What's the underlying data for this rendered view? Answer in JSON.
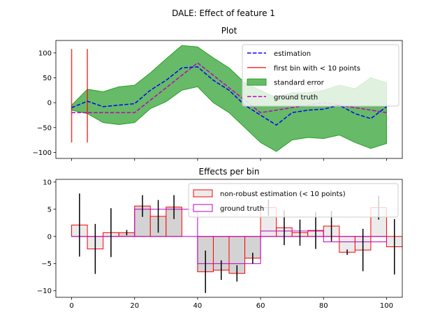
{
  "figure": {
    "suptitle": "DALE: Effect of feature 1"
  },
  "chart_data": [
    {
      "type": "line",
      "title": "Plot",
      "xlim": [
        -5,
        105
      ],
      "ylim": [
        -112,
        125
      ],
      "xticks": [
        0,
        20,
        40,
        60,
        80,
        100
      ],
      "show_xtick_labels": false,
      "yticks": [
        -100,
        -50,
        0,
        50,
        100
      ],
      "legend_position": "top-right",
      "series": [
        {
          "name": "estimation",
          "style": "dashed",
          "color": "#0000ff",
          "x": [
            0,
            5,
            10,
            15,
            20,
            25,
            30,
            35,
            40,
            45,
            50,
            55,
            60,
            65,
            70,
            75,
            80,
            85,
            90,
            95,
            100
          ],
          "y": [
            -10,
            3,
            -8,
            -5,
            -2,
            25,
            45,
            70,
            72,
            45,
            25,
            -5,
            -25,
            -45,
            -20,
            -15,
            -13,
            -5,
            -22,
            -32,
            -8
          ]
        },
        {
          "name": "ground truth",
          "style": "dashed",
          "color": "#bf00bf",
          "x": [
            0,
            20,
            40,
            60,
            80,
            100
          ],
          "y": [
            -20,
            -20,
            80,
            -20,
            0,
            -20
          ]
        }
      ],
      "band": {
        "name": "standard error",
        "color": "#2ca02c",
        "x": [
          0,
          5,
          10,
          15,
          20,
          25,
          30,
          35,
          40,
          45,
          50,
          55,
          60,
          65,
          70,
          75,
          80,
          85,
          90,
          95,
          100
        ],
        "upper": [
          -5,
          27,
          22,
          32,
          35,
          60,
          88,
          115,
          112,
          90,
          70,
          40,
          25,
          10,
          20,
          20,
          25,
          35,
          28,
          50,
          40
        ],
        "lower": [
          -15,
          -22,
          -40,
          -44,
          -40,
          -12,
          2,
          25,
          32,
          0,
          -20,
          -50,
          -80,
          -98,
          -75,
          -70,
          -72,
          -65,
          -80,
          -92,
          -82
        ]
      },
      "vlines": {
        "name": "first bin with < 10 points",
        "color": "#ff0000",
        "x": [
          0,
          5
        ],
        "ymin": -80,
        "ymax": 108
      }
    },
    {
      "type": "bar",
      "title": "Effects per bin",
      "xlim": [
        -5,
        105
      ],
      "ylim": [
        -11.2,
        10.5
      ],
      "xticks": [
        0,
        20,
        40,
        60,
        80,
        100
      ],
      "yticks": [
        -10,
        -5,
        0,
        5,
        10
      ],
      "legend_position": "top-right",
      "bars": {
        "name": "non-robust estimation (< 10 points)",
        "edge_color": "#ff0000",
        "items": [
          {
            "x0": 0,
            "x1": 5,
            "value": 2.1,
            "robust": false,
            "err": 5.8
          },
          {
            "x0": 5,
            "x1": 10,
            "value": -2.3,
            "robust": false,
            "err": 4.6
          },
          {
            "x0": 10,
            "x1": 15,
            "value": 0.7,
            "robust": false,
            "err": 4.5
          },
          {
            "x0": 15,
            "x1": 20,
            "value": 0.7,
            "robust": true,
            "err": 0.5
          },
          {
            "x0": 20,
            "x1": 25,
            "value": 5.6,
            "robust": true,
            "err": 2.0
          },
          {
            "x0": 25,
            "x1": 30,
            "value": 3.7,
            "robust": true,
            "err": 3.0
          },
          {
            "x0": 30,
            "x1": 35,
            "value": 5.4,
            "robust": true,
            "err": 2.2
          },
          {
            "x0": 35,
            "x1": 40,
            "value": 0.0,
            "robust": true,
            "err": 0.0
          },
          {
            "x0": 40,
            "x1": 45,
            "value": -6.5,
            "robust": true,
            "err": 3.9
          },
          {
            "x0": 45,
            "x1": 50,
            "value": -6.2,
            "robust": true,
            "err": 1.8
          },
          {
            "x0": 50,
            "x1": 55,
            "value": -6.8,
            "robust": true,
            "err": 1.5
          },
          {
            "x0": 55,
            "x1": 60,
            "value": -4.0,
            "robust": true,
            "err": 1.0
          },
          {
            "x0": 60,
            "x1": 65,
            "value": 5.3,
            "robust": false,
            "err": 1.5
          },
          {
            "x0": 65,
            "x1": 70,
            "value": 1.6,
            "robust": false,
            "err": 3.2
          },
          {
            "x0": 70,
            "x1": 75,
            "value": 0.7,
            "robust": false,
            "err": 2.4
          },
          {
            "x0": 75,
            "x1": 80,
            "value": 1.1,
            "robust": false,
            "err": 3.4
          },
          {
            "x0": 80,
            "x1": 85,
            "value": 1.9,
            "robust": false,
            "err": 2.8
          },
          {
            "x0": 85,
            "x1": 90,
            "value": -2.9,
            "robust": false,
            "err": 0.5
          },
          {
            "x0": 90,
            "x1": 95,
            "value": -2.5,
            "robust": false,
            "err": 3.9
          },
          {
            "x0": 95,
            "x1": 100,
            "value": 5.3,
            "robust": false,
            "err": 2.2
          },
          {
            "x0": 100,
            "x1": 105,
            "value": -1.9,
            "robust": false,
            "err": 5.1
          }
        ]
      },
      "ground_truth": {
        "name": "ground truth",
        "edge_color": "#bf00bf",
        "items": [
          {
            "x0": 0,
            "x1": 20,
            "value": 0
          },
          {
            "x0": 20,
            "x1": 40,
            "value": 5
          },
          {
            "x0": 40,
            "x1": 60,
            "value": -5
          },
          {
            "x0": 60,
            "x1": 80,
            "value": 1
          },
          {
            "x0": 80,
            "x1": 100,
            "value": -1
          }
        ]
      }
    }
  ]
}
